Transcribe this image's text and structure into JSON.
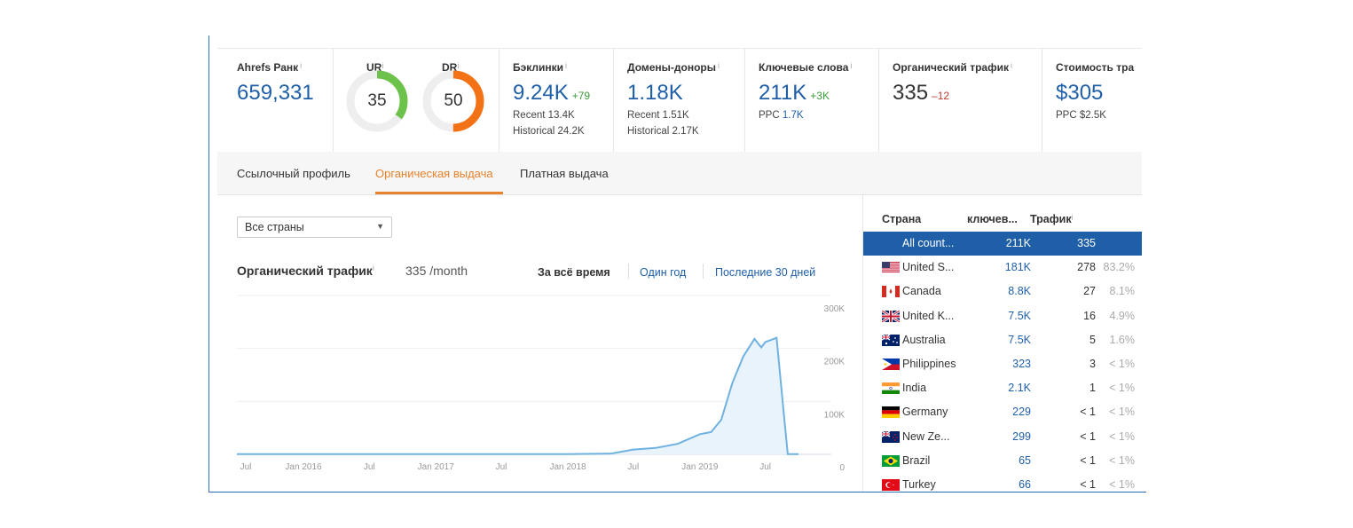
{
  "metrics": {
    "ahrefs_rank": {
      "label": "Ahrefs Ранк",
      "value": "659,331"
    },
    "ur": {
      "label": "UR",
      "value": "35",
      "score": 35,
      "color": "#6cc24a"
    },
    "dr": {
      "label": "DR",
      "value": "50",
      "score": 50,
      "color": "#f47216"
    },
    "backlinks": {
      "label": "Бэклинки",
      "value": "9.24K",
      "delta": "+79",
      "recent_label": "Recent",
      "recent": "13.4K",
      "hist_label": "Historical",
      "hist": "24.2K"
    },
    "ref_domains": {
      "label": "Домены-доноры",
      "value": "1.18K",
      "recent_label": "Recent",
      "recent": "1.51K",
      "hist_label": "Historical",
      "hist": "2.17K"
    },
    "keywords": {
      "label": "Ключевые слова",
      "value": "211K",
      "delta": "+3K",
      "ppc_label": "PPC",
      "ppc": "1.7K"
    },
    "organic": {
      "label": "Органический трафик",
      "value": "335",
      "delta": "–12"
    },
    "cost": {
      "label": "Стоимость тра",
      "value": "$305",
      "ppc_label": "PPC",
      "ppc": "$2.5K"
    }
  },
  "tabs": [
    "Ссылочный профиль",
    "Органическая выдача",
    "Платная выдача"
  ],
  "country_select": {
    "value": "Все страны"
  },
  "chart_header": {
    "title": "Органический трафик",
    "value": "335 /month",
    "ranges": [
      "За всё время",
      "Один год",
      "Последние 30 дней"
    ]
  },
  "chart_data": {
    "type": "area",
    "x_ticks": [
      "Jul",
      "Jan 2016",
      "Jul",
      "Jan 2017",
      "Jul",
      "Jan 2018",
      "Jul",
      "Jan 2019",
      "Jul"
    ],
    "y_ticks": [
      "300K",
      "200K",
      "100K",
      "0"
    ],
    "ylim": [
      0,
      300000
    ],
    "x_start": "2015-07",
    "x_end": "2019-12",
    "points": [
      {
        "x": "2015-07",
        "y": 300
      },
      {
        "x": "2016-01",
        "y": 300
      },
      {
        "x": "2016-07",
        "y": 300
      },
      {
        "x": "2017-01",
        "y": 300
      },
      {
        "x": "2017-07",
        "y": 300
      },
      {
        "x": "2018-01",
        "y": 300
      },
      {
        "x": "2018-05",
        "y": 1500
      },
      {
        "x": "2018-07",
        "y": 9000
      },
      {
        "x": "2018-09",
        "y": 12000
      },
      {
        "x": "2018-11",
        "y": 20000
      },
      {
        "x": "2019-01",
        "y": 38000
      },
      {
        "x": "2019-02",
        "y": 42000
      },
      {
        "x": "2019-03",
        "y": 65000
      },
      {
        "x": "2019-04",
        "y": 135000
      },
      {
        "x": "2019-05",
        "y": 185000
      },
      {
        "x": "2019-06",
        "y": 218000
      },
      {
        "x": "2019-06-20",
        "y": 202000
      },
      {
        "x": "2019-07",
        "y": 212000
      },
      {
        "x": "2019-08",
        "y": 220000
      },
      {
        "x": "2019-08-20",
        "y": 85000
      },
      {
        "x": "2019-09",
        "y": 335
      },
      {
        "x": "2019-10",
        "y": 335
      }
    ],
    "color": "#6fb1e0",
    "fill": "#e9f3fb"
  },
  "country_table": {
    "headers": [
      "Страна",
      "ключев...",
      "Трафик"
    ],
    "rows": [
      {
        "name": "All count...",
        "keywords": "211K",
        "traffic": "335",
        "pct": "",
        "flag": "none"
      },
      {
        "name": "United S...",
        "keywords": "181K",
        "traffic": "278",
        "pct": "83.2%",
        "flag": "us"
      },
      {
        "name": "Canada",
        "keywords": "8.8K",
        "traffic": "27",
        "pct": "8.1%",
        "flag": "ca"
      },
      {
        "name": "United K...",
        "keywords": "7.5K",
        "traffic": "16",
        "pct": "4.9%",
        "flag": "gb"
      },
      {
        "name": "Australia",
        "keywords": "7.5K",
        "traffic": "5",
        "pct": "1.6%",
        "flag": "au"
      },
      {
        "name": "Philippines",
        "keywords": "323",
        "traffic": "3",
        "pct": "< 1%",
        "flag": "ph"
      },
      {
        "name": "India",
        "keywords": "2.1K",
        "traffic": "1",
        "pct": "< 1%",
        "flag": "in"
      },
      {
        "name": "Germany",
        "keywords": "229",
        "traffic": "< 1",
        "pct": "< 1%",
        "flag": "de"
      },
      {
        "name": "New Ze...",
        "keywords": "299",
        "traffic": "< 1",
        "pct": "< 1%",
        "flag": "nz"
      },
      {
        "name": "Brazil",
        "keywords": "65",
        "traffic": "< 1",
        "pct": "< 1%",
        "flag": "br"
      },
      {
        "name": "Turkey",
        "keywords": "66",
        "traffic": "< 1",
        "pct": "< 1%",
        "flag": "tr"
      }
    ]
  }
}
